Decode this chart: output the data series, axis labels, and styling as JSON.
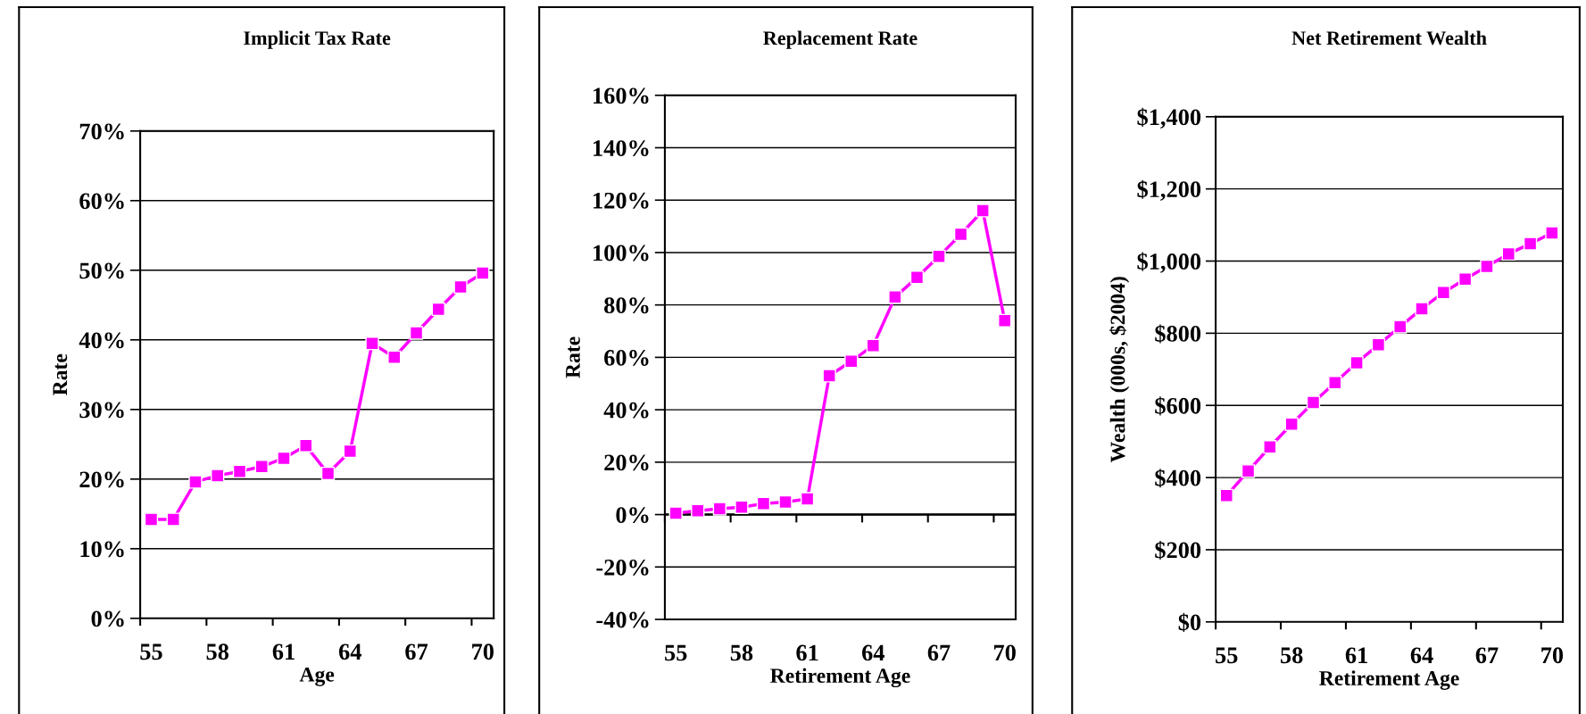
{
  "chart_data": [
    {
      "type": "line",
      "title": "Implicit Tax Rate",
      "xlabel": "Age",
      "ylabel": "Rate",
      "categories": [
        "55",
        null,
        null,
        "58",
        null,
        null,
        "61",
        null,
        null,
        "64",
        null,
        null,
        "67",
        null,
        null,
        "70"
      ],
      "series": [
        {
          "color": "#ff00ff",
          "values": [
            14.2,
            14.2,
            19.6,
            20.5,
            21.1,
            21.8,
            23.0,
            24.8,
            20.8,
            24.0,
            39.5,
            37.5,
            41.0,
            44.4,
            47.6,
            49.6
          ]
        }
      ],
      "ylim": [
        0,
        70
      ],
      "yticks": [
        {
          "value": 0,
          "label": "0%"
        },
        {
          "value": 10,
          "label": "10%"
        },
        {
          "value": 20,
          "label": "20%"
        },
        {
          "value": 30,
          "label": "30%"
        },
        {
          "value": 40,
          "label": "40%"
        },
        {
          "value": 50,
          "label": "50%"
        },
        {
          "value": 60,
          "label": "60%"
        },
        {
          "value": 70,
          "label": "70%"
        }
      ],
      "grid": "y",
      "marker": "square",
      "line_style": "solid"
    },
    {
      "type": "line",
      "title": "Replacement Rate",
      "xlabel": "Retirement Age",
      "ylabel": "Rate",
      "categories": [
        "55",
        null,
        null,
        "58",
        null,
        null,
        "61",
        null,
        null,
        "64",
        null,
        null,
        "67",
        null,
        null,
        "70"
      ],
      "series": [
        {
          "color": "#ff00ff",
          "values": [
            0.5,
            1.5,
            2.2,
            2.8,
            4.2,
            4.8,
            6.0,
            53,
            58.5,
            64.5,
            83,
            90.5,
            98.5,
            107,
            116,
            74
          ]
        }
      ],
      "ylim": [
        -40,
        160
      ],
      "yticks": [
        {
          "value": -40,
          "label": "-40%"
        },
        {
          "value": -20,
          "label": "-20%"
        },
        {
          "value": 0,
          "label": "0%"
        },
        {
          "value": 20,
          "label": "20%"
        },
        {
          "value": 40,
          "label": "40%"
        },
        {
          "value": 60,
          "label": "60%"
        },
        {
          "value": 80,
          "label": "80%"
        },
        {
          "value": 100,
          "label": "100%"
        },
        {
          "value": 120,
          "label": "120%"
        },
        {
          "value": 140,
          "label": "140%"
        },
        {
          "value": 160,
          "label": "160%"
        }
      ],
      "ref_lines": [
        {
          "axis": "y",
          "value": 0,
          "color": "#000000"
        }
      ],
      "grid": "y",
      "marker": "square",
      "line_style": "solid"
    },
    {
      "type": "line",
      "title": "Net Retirement Wealth",
      "xlabel": "Retirement Age",
      "ylabel": "Wealth (000s, $2004)",
      "categories": [
        "55",
        null,
        null,
        "58",
        null,
        null,
        "61",
        null,
        null,
        "64",
        null,
        null,
        "67",
        null,
        null,
        "70"
      ],
      "series": [
        {
          "color": "#ff00ff",
          "values": [
            350,
            418,
            485,
            548,
            608,
            663,
            718,
            768,
            818,
            868,
            913,
            950,
            985,
            1020,
            1048,
            1078
          ]
        }
      ],
      "ylim": [
        0,
        1400
      ],
      "yticks": [
        {
          "value": 0,
          "label": "$0"
        },
        {
          "value": 200,
          "label": "$200"
        },
        {
          "value": 400,
          "label": "$400"
        },
        {
          "value": 600,
          "label": "$600"
        },
        {
          "value": 800,
          "label": "$800"
        },
        {
          "value": 1000,
          "label": "$1,000"
        },
        {
          "value": 1200,
          "label": "$1,200"
        },
        {
          "value": 1400,
          "label": "$1,400"
        }
      ],
      "grid": "y",
      "marker": "square",
      "line_style": "solid"
    }
  ]
}
